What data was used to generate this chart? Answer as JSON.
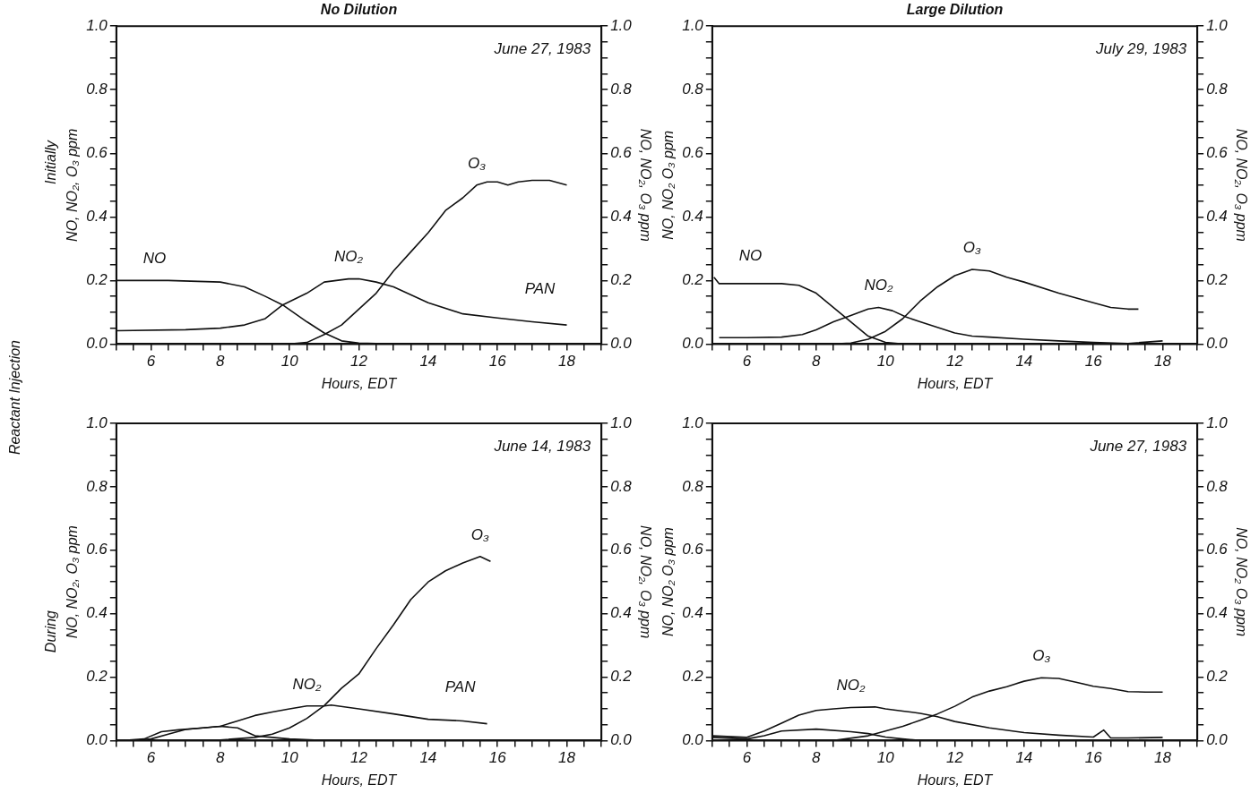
{
  "chart_data": [
    {
      "type": "other",
      "annotations": [
        "Initially",
        "Reactant Injection",
        "During"
      ]
    },
    {
      "type": "line",
      "title": "No Dilution",
      "subtitle": "June 27, 1983",
      "xlabel": "Hours, EDT",
      "ylabel": "NO, NO₂, O₃ ppm",
      "y2label": "NO, NO₂, O₃ ppm",
      "legend": false,
      "grid": false,
      "xlim": [
        5,
        19
      ],
      "xticks": [
        {
          "value": 5,
          "label": null
        },
        {
          "value": 5.5,
          "label": null
        },
        6,
        {
          "value": 6.5,
          "label": null
        },
        {
          "value": 7,
          "label": null
        },
        {
          "value": 7.5,
          "label": null
        },
        8,
        {
          "value": 8.5,
          "label": null
        },
        {
          "value": 9,
          "label": null
        },
        {
          "value": 9.5,
          "label": null
        },
        10,
        {
          "value": 10.5,
          "label": null
        },
        {
          "value": 11,
          "label": null
        },
        {
          "value": 11.5,
          "label": null
        },
        12,
        {
          "value": 12.5,
          "label": null
        },
        {
          "value": 13,
          "label": null
        },
        {
          "value": 13.5,
          "label": null
        },
        14,
        {
          "value": 14.5,
          "label": null
        },
        {
          "value": 15,
          "label": null
        },
        {
          "value": 15.5,
          "label": null
        },
        16,
        {
          "value": 16.5,
          "label": null
        },
        {
          "value": 17,
          "label": null
        },
        {
          "value": 17.5,
          "label": null
        },
        18,
        {
          "value": 18.5,
          "label": null
        },
        {
          "value": 19,
          "label": null
        }
      ],
      "ylim": [
        0,
        1
      ],
      "yticks": [
        {
          "value": 0,
          "label": "0.0"
        },
        {
          "value": 0.05,
          "label": null
        },
        {
          "value": 0.1,
          "label": null
        },
        {
          "value": 0.15,
          "label": null
        },
        {
          "value": 0.2,
          "label": "0.2"
        },
        {
          "value": 0.25,
          "label": null
        },
        {
          "value": 0.3,
          "label": null
        },
        {
          "value": 0.35,
          "label": null
        },
        {
          "value": 0.4,
          "label": "0.4"
        },
        {
          "value": 0.45,
          "label": null
        },
        {
          "value": 0.5,
          "label": null
        },
        {
          "value": 0.55,
          "label": null
        },
        {
          "value": 0.6,
          "label": "0.6"
        },
        {
          "value": 0.65,
          "label": null
        },
        {
          "value": 0.7,
          "label": null
        },
        {
          "value": 0.75,
          "label": null
        },
        {
          "value": 0.8,
          "label": "0.8"
        },
        {
          "value": 0.85,
          "label": null
        },
        {
          "value": 0.9,
          "label": null
        },
        {
          "value": 0.95,
          "label": null
        },
        {
          "value": 1,
          "label": "1.0"
        }
      ],
      "y2lim": [
        0,
        1
      ],
      "y2ticks": [
        {
          "value": 0,
          "label": "0.0"
        },
        {
          "value": 0.05,
          "label": null
        },
        {
          "value": 0.1,
          "label": null
        },
        {
          "value": 0.15,
          "label": null
        },
        {
          "value": 0.2,
          "label": "0.2"
        },
        {
          "value": 0.25,
          "label": null
        },
        {
          "value": 0.3,
          "label": null
        },
        {
          "value": 0.35,
          "label": null
        },
        {
          "value": 0.4,
          "label": "0.4"
        },
        {
          "value": 0.45,
          "label": null
        },
        {
          "value": 0.5,
          "label": null
        },
        {
          "value": 0.55,
          "label": null
        },
        {
          "value": 0.6,
          "label": "0.6"
        },
        {
          "value": 0.65,
          "label": null
        },
        {
          "value": 0.7,
          "label": null
        },
        {
          "value": 0.75,
          "label": null
        },
        {
          "value": 0.8,
          "label": "0.8"
        },
        {
          "value": 0.85,
          "label": null
        },
        {
          "value": 0.9,
          "label": null
        },
        {
          "value": 0.95,
          "label": null
        },
        {
          "value": 1,
          "label": "1.0"
        }
      ],
      "series": [
        {
          "name": "NO",
          "color": "#111111",
          "x": [
            5,
            6.5,
            8,
            8.7,
            9.3,
            9.8,
            10.5,
            11,
            11.5,
            12,
            13
          ],
          "values": [
            0.2,
            0.2,
            0.195,
            0.18,
            0.15,
            0.123,
            0.07,
            0.035,
            0.01,
            0.003,
            0
          ]
        },
        {
          "name": "NO₂",
          "color": "#111111",
          "x": [
            5,
            7,
            8,
            8.7,
            9.3,
            9.8,
            10.5,
            11,
            11.7,
            12,
            12.5,
            13,
            14,
            15,
            16,
            17,
            18
          ],
          "values": [
            0.042,
            0.045,
            0.05,
            0.06,
            0.08,
            0.123,
            0.16,
            0.195,
            0.205,
            0.205,
            0.195,
            0.18,
            0.13,
            0.095,
            0.082,
            0.07,
            0.06
          ]
        },
        {
          "name": "O₃",
          "color": "#111111",
          "x": [
            10,
            10.5,
            11,
            11.5,
            12,
            12.5,
            13,
            13.5,
            14,
            14.5,
            15,
            15.4,
            15.7,
            16,
            16.3,
            16.6,
            17,
            17.5,
            18
          ],
          "values": [
            0,
            0.005,
            0.03,
            0.06,
            0.11,
            0.16,
            0.23,
            0.29,
            0.35,
            0.42,
            0.46,
            0.5,
            0.51,
            0.51,
            0.5,
            0.51,
            0.515,
            0.515,
            0.5
          ]
        }
      ],
      "annotations": [
        "PAN"
      ]
    },
    {
      "type": "line",
      "title": "Large Dilution",
      "subtitle": "July 29, 1983",
      "xlabel": "Hours, EDT",
      "ylabel": "NO, NO₂ O₃ ppm",
      "y2label": "NO, NO₂, O₃ ppm",
      "legend": false,
      "grid": false,
      "xlim": [
        5,
        19
      ],
      "xticks": [
        {
          "value": 5,
          "label": null
        },
        {
          "value": 5.5,
          "label": null
        },
        6,
        {
          "value": 6.5,
          "label": null
        },
        {
          "value": 7,
          "label": null
        },
        {
          "value": 7.5,
          "label": null
        },
        8,
        {
          "value": 8.5,
          "label": null
        },
        {
          "value": 9,
          "label": null
        },
        {
          "value": 9.5,
          "label": null
        },
        10,
        {
          "value": 10.5,
          "label": null
        },
        {
          "value": 11,
          "label": null
        },
        {
          "value": 11.5,
          "label": null
        },
        12,
        {
          "value": 12.5,
          "label": null
        },
        {
          "value": 13,
          "label": null
        },
        {
          "value": 13.5,
          "label": null
        },
        14,
        {
          "value": 14.5,
          "label": null
        },
        {
          "value": 15,
          "label": null
        },
        {
          "value": 15.5,
          "label": null
        },
        16,
        {
          "value": 16.5,
          "label": null
        },
        {
          "value": 17,
          "label": null
        },
        {
          "value": 17.5,
          "label": null
        },
        18,
        {
          "value": 18.5,
          "label": null
        },
        {
          "value": 19,
          "label": null
        }
      ],
      "ylim": [
        0,
        1
      ],
      "yticks": [
        {
          "value": 0,
          "label": "0.0"
        },
        {
          "value": 0.05,
          "label": null
        },
        {
          "value": 0.1,
          "label": null
        },
        {
          "value": 0.15,
          "label": null
        },
        {
          "value": 0.2,
          "label": "0.2"
        },
        {
          "value": 0.25,
          "label": null
        },
        {
          "value": 0.3,
          "label": null
        },
        {
          "value": 0.35,
          "label": null
        },
        {
          "value": 0.4,
          "label": "0.4"
        },
        {
          "value": 0.45,
          "label": null
        },
        {
          "value": 0.5,
          "label": null
        },
        {
          "value": 0.55,
          "label": null
        },
        {
          "value": 0.6,
          "label": "0.6"
        },
        {
          "value": 0.65,
          "label": null
        },
        {
          "value": 0.7,
          "label": null
        },
        {
          "value": 0.75,
          "label": null
        },
        {
          "value": 0.8,
          "label": "0.8"
        },
        {
          "value": 0.85,
          "label": null
        },
        {
          "value": 0.9,
          "label": null
        },
        {
          "value": 0.95,
          "label": null
        },
        {
          "value": 1,
          "label": "1.0"
        }
      ],
      "y2lim": [
        0,
        1
      ],
      "y2ticks": [
        {
          "value": 0,
          "label": "0.0"
        },
        {
          "value": 0.05,
          "label": null
        },
        {
          "value": 0.1,
          "label": null
        },
        {
          "value": 0.15,
          "label": null
        },
        {
          "value": 0.2,
          "label": "0.2"
        },
        {
          "value": 0.25,
          "label": null
        },
        {
          "value": 0.3,
          "label": null
        },
        {
          "value": 0.35,
          "label": null
        },
        {
          "value": 0.4,
          "label": "0.4"
        },
        {
          "value": 0.45,
          "label": null
        },
        {
          "value": 0.5,
          "label": null
        },
        {
          "value": 0.55,
          "label": null
        },
        {
          "value": 0.6,
          "label": "0.6"
        },
        {
          "value": 0.65,
          "label": null
        },
        {
          "value": 0.7,
          "label": null
        },
        {
          "value": 0.75,
          "label": null
        },
        {
          "value": 0.8,
          "label": "0.8"
        },
        {
          "value": 0.85,
          "label": null
        },
        {
          "value": 0.9,
          "label": null
        },
        {
          "value": 0.95,
          "label": null
        },
        {
          "value": 1,
          "label": "1.0"
        }
      ],
      "series": [
        {
          "name": "NO",
          "color": "#111111",
          "x": [
            5.05,
            5.2,
            6,
            7,
            7.5,
            8,
            8.5,
            9,
            9.5,
            10,
            10.5,
            14
          ],
          "values": [
            0.21,
            0.19,
            0.19,
            0.19,
            0.185,
            0.16,
            0.115,
            0.07,
            0.025,
            0.005,
            0,
            0
          ]
        },
        {
          "name": "NO₂",
          "color": "#111111",
          "x": [
            5.2,
            6,
            7,
            7.6,
            8,
            8.5,
            9,
            9.5,
            9.8,
            10.2,
            10.6,
            11,
            12,
            12.5,
            13,
            14,
            15,
            16,
            17,
            18
          ],
          "values": [
            0.02,
            0.02,
            0.022,
            0.03,
            0.045,
            0.07,
            0.09,
            0.11,
            0.115,
            0.105,
            0.085,
            0.07,
            0.035,
            0.025,
            0.022,
            0.015,
            0.01,
            0.005,
            0.002,
            0.01
          ]
        },
        {
          "name": "O₃",
          "color": "#111111",
          "x": [
            8.5,
            9,
            9.5,
            10,
            10.5,
            11,
            11.5,
            12,
            12.5,
            13,
            13.5,
            14,
            15,
            16,
            16.5,
            17,
            17.3
          ],
          "values": [
            0,
            0.003,
            0.015,
            0.04,
            0.08,
            0.135,
            0.18,
            0.215,
            0.235,
            0.23,
            0.21,
            0.195,
            0.16,
            0.13,
            0.115,
            0.11,
            0.11
          ]
        }
      ]
    },
    {
      "type": "line",
      "subtitle": "June 14, 1983",
      "xlabel": "Hours, EDT",
      "ylabel": "NO, NO₂, O₃ ppm",
      "y2label": "NO, NO₂, O₃ ppm",
      "legend": false,
      "grid": false,
      "xlim": [
        5,
        19
      ],
      "xticks": [
        {
          "value": 5,
          "label": null
        },
        {
          "value": 5.5,
          "label": null
        },
        6,
        {
          "value": 6.5,
          "label": null
        },
        {
          "value": 7,
          "label": null
        },
        {
          "value": 7.5,
          "label": null
        },
        8,
        {
          "value": 8.5,
          "label": null
        },
        {
          "value": 9,
          "label": null
        },
        {
          "value": 9.5,
          "label": null
        },
        10,
        {
          "value": 10.5,
          "label": null
        },
        {
          "value": 11,
          "label": null
        },
        {
          "value": 11.5,
          "label": null
        },
        12,
        {
          "value": 12.5,
          "label": null
        },
        {
          "value": 13,
          "label": null
        },
        {
          "value": 13.5,
          "label": null
        },
        14,
        {
          "value": 14.5,
          "label": null
        },
        {
          "value": 15,
          "label": null
        },
        {
          "value": 15.5,
          "label": null
        },
        16,
        {
          "value": 16.5,
          "label": null
        },
        {
          "value": 17,
          "label": null
        },
        {
          "value": 17.5,
          "label": null
        },
        18,
        {
          "value": 18.5,
          "label": null
        },
        {
          "value": 19,
          "label": null
        }
      ],
      "ylim": [
        0,
        1
      ],
      "yticks": [
        {
          "value": 0,
          "label": "0.0"
        },
        {
          "value": 0.05,
          "label": null
        },
        {
          "value": 0.1,
          "label": null
        },
        {
          "value": 0.15,
          "label": null
        },
        {
          "value": 0.2,
          "label": "0.2"
        },
        {
          "value": 0.25,
          "label": null
        },
        {
          "value": 0.3,
          "label": null
        },
        {
          "value": 0.35,
          "label": null
        },
        {
          "value": 0.4,
          "label": "0.4"
        },
        {
          "value": 0.45,
          "label": null
        },
        {
          "value": 0.5,
          "label": null
        },
        {
          "value": 0.55,
          "label": null
        },
        {
          "value": 0.6,
          "label": "0.6"
        },
        {
          "value": 0.65,
          "label": null
        },
        {
          "value": 0.7,
          "label": null
        },
        {
          "value": 0.75,
          "label": null
        },
        {
          "value": 0.8,
          "label": "0.8"
        },
        {
          "value": 0.85,
          "label": null
        },
        {
          "value": 0.9,
          "label": null
        },
        {
          "value": 0.95,
          "label": null
        },
        {
          "value": 1,
          "label": "1.0"
        }
      ],
      "y2lim": [
        0,
        1
      ],
      "y2ticks": [
        {
          "value": 0,
          "label": "0.0"
        },
        {
          "value": 0.05,
          "label": null
        },
        {
          "value": 0.1,
          "label": null
        },
        {
          "value": 0.15,
          "label": null
        },
        {
          "value": 0.2,
          "label": "0.2"
        },
        {
          "value": 0.25,
          "label": null
        },
        {
          "value": 0.3,
          "label": null
        },
        {
          "value": 0.35,
          "label": null
        },
        {
          "value": 0.4,
          "label": "0.4"
        },
        {
          "value": 0.45,
          "label": null
        },
        {
          "value": 0.5,
          "label": null
        },
        {
          "value": 0.55,
          "label": null
        },
        {
          "value": 0.6,
          "label": "0.6"
        },
        {
          "value": 0.65,
          "label": null
        },
        {
          "value": 0.7,
          "label": null
        },
        {
          "value": 0.75,
          "label": null
        },
        {
          "value": 0.8,
          "label": "0.8"
        },
        {
          "value": 0.85,
          "label": null
        },
        {
          "value": 0.9,
          "label": null
        },
        {
          "value": 0.95,
          "label": null
        },
        {
          "value": 1,
          "label": "1.0"
        }
      ],
      "series": [
        {
          "color": "#111111",
          "x": [
            5.5,
            6,
            6.5,
            7,
            7.5,
            8,
            8.5,
            9,
            9.5,
            10,
            11
          ],
          "values": [
            0,
            0.005,
            0.02,
            0.035,
            0.04,
            0.045,
            0.04,
            0.015,
            0.01,
            0.005,
            0
          ]
        },
        {
          "name": "NO₂",
          "color": "#111111",
          "x": [
            5.2,
            5.8,
            6.3,
            6.8,
            7.5,
            8,
            8.5,
            9,
            9.5,
            10,
            10.5,
            11,
            11.2,
            12,
            13,
            14,
            15,
            15.7
          ],
          "values": [
            0,
            0.005,
            0.028,
            0.034,
            0.04,
            0.045,
            0.062,
            0.079,
            0.09,
            0.1,
            0.109,
            0.109,
            0.112,
            0.1,
            0.084,
            0.067,
            0.062,
            0.053
          ]
        },
        {
          "name": "O₃",
          "color": "#111111",
          "x": [
            5,
            6,
            7,
            8,
            9,
            9.5,
            10,
            10.5,
            11,
            11.5,
            12,
            12.5,
            13,
            13.5,
            14,
            14.5,
            15,
            15.5,
            15.8
          ],
          "values": [
            0,
            0,
            0,
            0.002,
            0.01,
            0.02,
            0.04,
            0.07,
            0.11,
            0.165,
            0.21,
            0.29,
            0.365,
            0.445,
            0.5,
            0.535,
            0.56,
            0.58,
            0.565
          ]
        }
      ],
      "annotations": [
        "PAN"
      ]
    },
    {
      "type": "line",
      "subtitle": "June 27, 1983",
      "xlabel": "Hours, EDT",
      "ylabel": "NO, NO₂ O₃ ppm",
      "y2label": "NO, NO₂ O₃ ppm",
      "legend": false,
      "grid": false,
      "xlim": [
        5,
        19
      ],
      "xticks": [
        {
          "value": 5,
          "label": null
        },
        {
          "value": 5.5,
          "label": null
        },
        6,
        {
          "value": 6.5,
          "label": null
        },
        {
          "value": 7,
          "label": null
        },
        {
          "value": 7.5,
          "label": null
        },
        8,
        {
          "value": 8.5,
          "label": null
        },
        {
          "value": 9,
          "label": null
        },
        {
          "value": 9.5,
          "label": null
        },
        10,
        {
          "value": 10.5,
          "label": null
        },
        {
          "value": 11,
          "label": null
        },
        {
          "value": 11.5,
          "label": null
        },
        12,
        {
          "value": 12.5,
          "label": null
        },
        {
          "value": 13,
          "label": null
        },
        {
          "value": 13.5,
          "label": null
        },
        14,
        {
          "value": 14.5,
          "label": null
        },
        {
          "value": 15,
          "label": null
        },
        {
          "value": 15.5,
          "label": null
        },
        16,
        {
          "value": 16.5,
          "label": null
        },
        {
          "value": 17,
          "label": null
        },
        {
          "value": 17.5,
          "label": null
        },
        18,
        {
          "value": 18.5,
          "label": null
        },
        {
          "value": 19,
          "label": null
        }
      ],
      "ylim": [
        0,
        1
      ],
      "yticks": [
        {
          "value": 0,
          "label": "0.0"
        },
        {
          "value": 0.05,
          "label": null
        },
        {
          "value": 0.1,
          "label": null
        },
        {
          "value": 0.15,
          "label": null
        },
        {
          "value": 0.2,
          "label": "0.2"
        },
        {
          "value": 0.25,
          "label": null
        },
        {
          "value": 0.3,
          "label": null
        },
        {
          "value": 0.35,
          "label": null
        },
        {
          "value": 0.4,
          "label": "0.4"
        },
        {
          "value": 0.45,
          "label": null
        },
        {
          "value": 0.5,
          "label": null
        },
        {
          "value": 0.55,
          "label": null
        },
        {
          "value": 0.6,
          "label": "0.6"
        },
        {
          "value": 0.65,
          "label": null
        },
        {
          "value": 0.7,
          "label": null
        },
        {
          "value": 0.75,
          "label": null
        },
        {
          "value": 0.8,
          "label": "0.8"
        },
        {
          "value": 0.85,
          "label": null
        },
        {
          "value": 0.9,
          "label": null
        },
        {
          "value": 0.95,
          "label": null
        },
        {
          "value": 1,
          "label": "1.0"
        }
      ],
      "y2lim": [
        0,
        1
      ],
      "y2ticks": [
        {
          "value": 0,
          "label": "0.0"
        },
        {
          "value": 0.05,
          "label": null
        },
        {
          "value": 0.1,
          "label": null
        },
        {
          "value": 0.15,
          "label": null
        },
        {
          "value": 0.2,
          "label": "0.2"
        },
        {
          "value": 0.25,
          "label": null
        },
        {
          "value": 0.3,
          "label": null
        },
        {
          "value": 0.35,
          "label": null
        },
        {
          "value": 0.4,
          "label": "0.4"
        },
        {
          "value": 0.45,
          "label": null
        },
        {
          "value": 0.5,
          "label": null
        },
        {
          "value": 0.55,
          "label": null
        },
        {
          "value": 0.6,
          "label": "0.6"
        },
        {
          "value": 0.65,
          "label": null
        },
        {
          "value": 0.7,
          "label": null
        },
        {
          "value": 0.75,
          "label": null
        },
        {
          "value": 0.8,
          "label": "0.8"
        },
        {
          "value": 0.85,
          "label": null
        },
        {
          "value": 0.9,
          "label": null
        },
        {
          "value": 0.95,
          "label": null
        },
        {
          "value": 1,
          "label": "1.0"
        }
      ],
      "series": [
        {
          "color": "#111111",
          "x": [
            5,
            6,
            6.5,
            7,
            8,
            9,
            9.5,
            10,
            10.5,
            11
          ],
          "values": [
            0.01,
            0.005,
            0.015,
            0.03,
            0.036,
            0.028,
            0.022,
            0.011,
            0.005,
            0
          ]
        },
        {
          "name": "NO₂",
          "color": "#111111",
          "x": [
            5,
            6,
            6.5,
            7,
            7.5,
            8,
            8.5,
            9,
            9.7,
            10,
            10.5,
            11,
            11.5,
            12,
            13,
            14,
            15,
            16,
            16.3,
            16.5,
            17,
            18
          ],
          "values": [
            0.015,
            0.01,
            0.03,
            0.055,
            0.08,
            0.095,
            0.1,
            0.104,
            0.106,
            0.1,
            0.093,
            0.086,
            0.075,
            0.06,
            0.04,
            0.025,
            0.017,
            0.011,
            0.033,
            0.008,
            0.008,
            0.01
          ]
        },
        {
          "name": "O₃",
          "color": "#111111",
          "x": [
            8.5,
            9.5,
            10,
            10.5,
            11,
            11.5,
            12,
            12.5,
            13,
            13.5,
            14,
            14.5,
            15,
            15.5,
            16,
            16.5,
            17,
            17.5,
            18
          ],
          "values": [
            0,
            0.015,
            0.03,
            0.045,
            0.064,
            0.084,
            0.108,
            0.137,
            0.156,
            0.17,
            0.187,
            0.198,
            0.196,
            0.184,
            0.171,
            0.164,
            0.154,
            0.153,
            0.153
          ]
        }
      ]
    }
  ]
}
